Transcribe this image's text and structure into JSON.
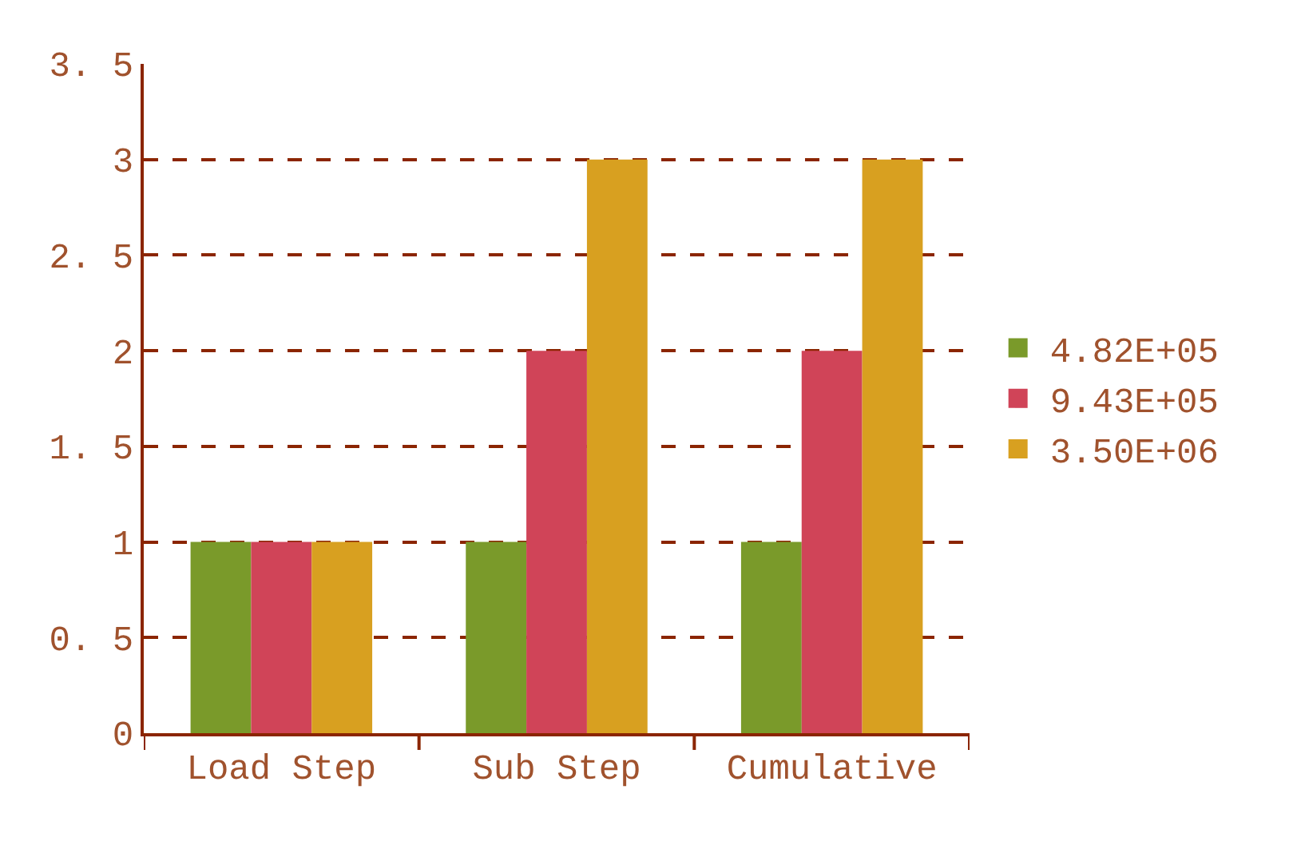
{
  "chart_data": {
    "type": "bar",
    "categories": [
      "Load Step",
      "Sub Step",
      "Cumulative"
    ],
    "series": [
      {
        "name": "4.82E+05",
        "color": "#7a9a2a",
        "values": [
          1,
          1,
          1
        ]
      },
      {
        "name": "9.43E+05",
        "color": "#d04458",
        "values": [
          1,
          2,
          2
        ]
      },
      {
        "name": "3.50E+06",
        "color": "#d8a020",
        "values": [
          1,
          3,
          3
        ]
      }
    ],
    "ylim": [
      0,
      3.5
    ],
    "yticks": [
      0,
      {
        "value": 0.5,
        "label": "0. 5"
      },
      1,
      {
        "value": 1.5,
        "label": "1. 5"
      },
      2,
      {
        "value": 2.5,
        "label": "2. 5"
      },
      3,
      {
        "value": 3.5,
        "label": "3. 5"
      }
    ],
    "grid": "y",
    "legend": "right",
    "line_style": "dashed"
  }
}
